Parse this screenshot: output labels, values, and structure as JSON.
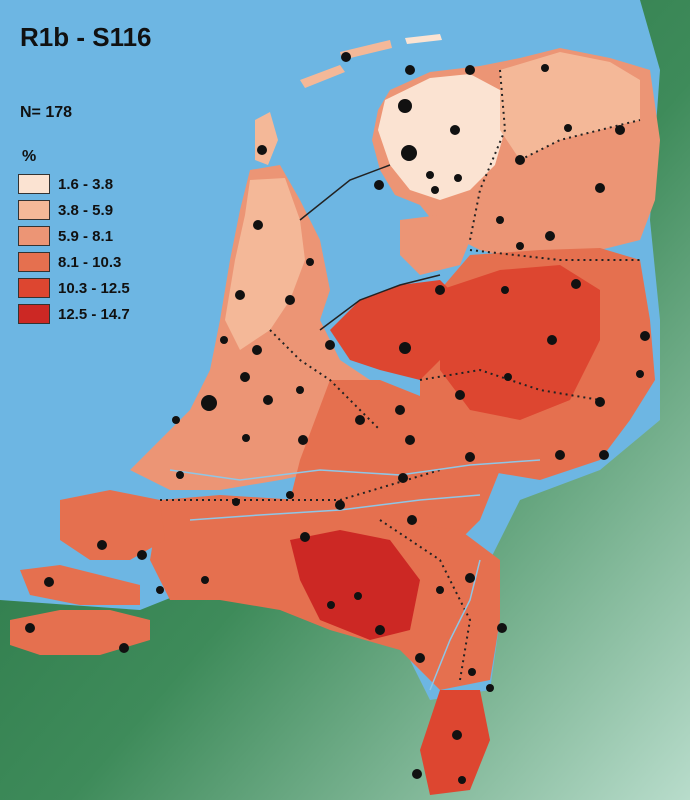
{
  "title": "R1b - S116",
  "sample_size": "N= 178",
  "unit": "%",
  "legend": [
    {
      "label": "1.6 - 3.8",
      "color": "#fbe3d2"
    },
    {
      "label": "3.8 - 5.9",
      "color": "#f4b898"
    },
    {
      "label": "5.9 - 8.1",
      "color": "#ec9575"
    },
    {
      "label": "8.1 - 10.3",
      "color": "#e5704f"
    },
    {
      "label": "10.3 - 12.5",
      "color": "#dd4630"
    },
    {
      "label": "12.5 - 14.7",
      "color": "#cc2824"
    }
  ],
  "colors": {
    "sea": "#6db6e3",
    "land_neighbor": "#2f7a4e",
    "dot": "#111111"
  }
}
